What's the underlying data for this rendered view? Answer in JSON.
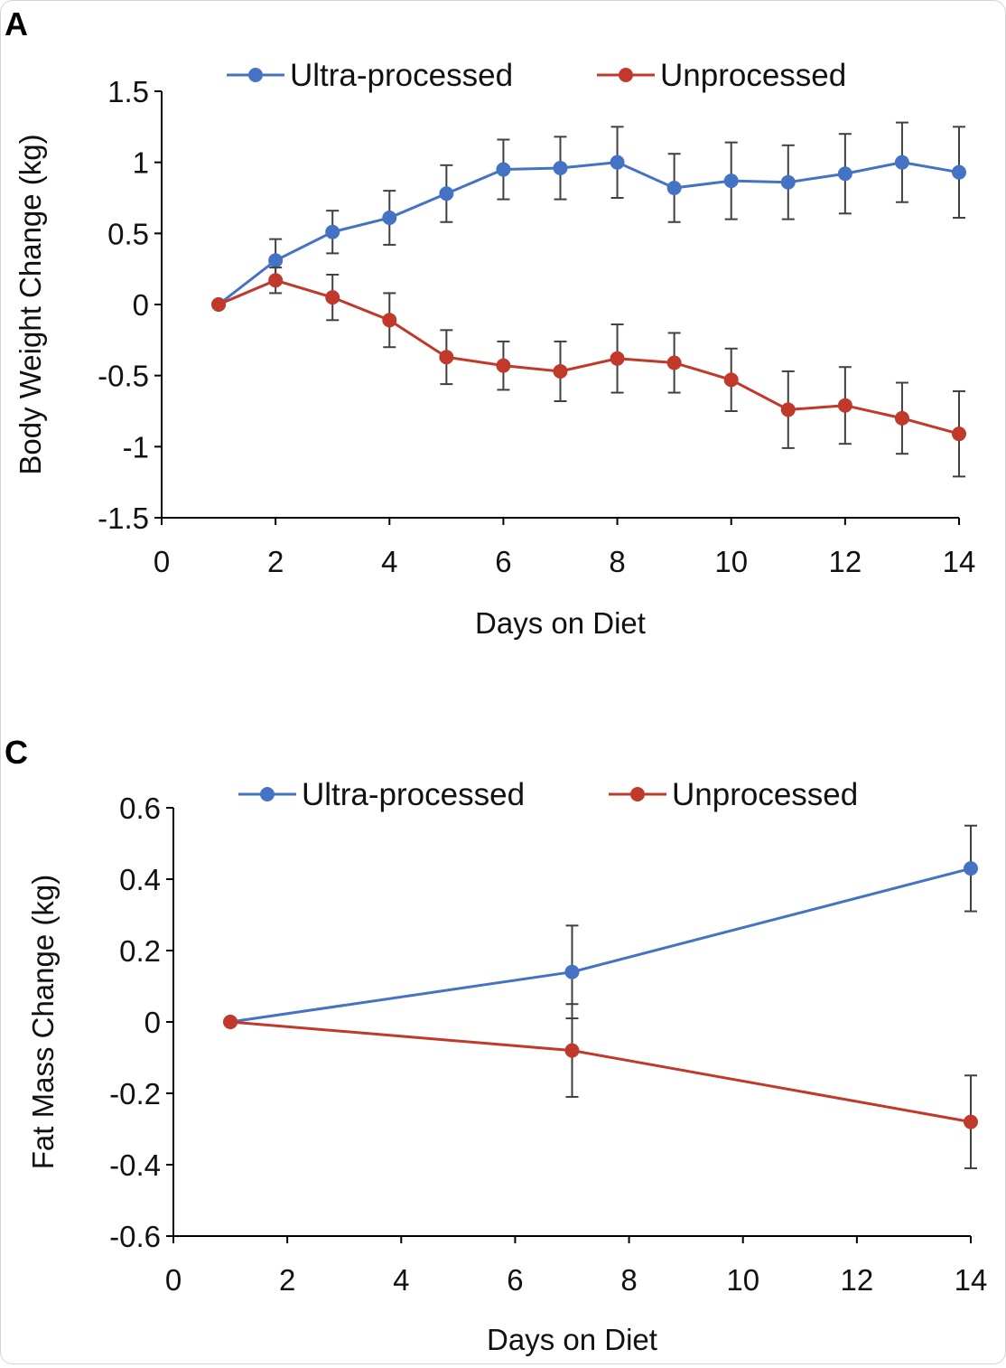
{
  "colors": {
    "ultra": "#4472C4",
    "unprocessed": "#C0392B",
    "axis": "#000000",
    "errorbar": "#404040"
  },
  "chart_data": [
    {
      "panel_label": "A",
      "type": "line",
      "xlabel": "Days on Diet",
      "ylabel": "Body Weight Change (kg)",
      "xlim": [
        0,
        14
      ],
      "ylim": [
        -1.5,
        1.5
      ],
      "xticks": [
        "0",
        "2",
        "4",
        "6",
        "8",
        "10",
        "12",
        "14"
      ],
      "yticks": [
        "1.5",
        "1",
        "0.5",
        "0",
        "-0.5",
        "-1",
        "-1.5"
      ],
      "legend_position": "top",
      "grid": false,
      "x": [
        1,
        2,
        3,
        4,
        5,
        6,
        7,
        8,
        9,
        10,
        11,
        12,
        13,
        14
      ],
      "series": [
        {
          "name": "Ultra-processed",
          "color": "#4472C4",
          "values": [
            0,
            0.31,
            0.51,
            0.61,
            0.78,
            0.95,
            0.96,
            1.0,
            0.82,
            0.87,
            0.86,
            0.92,
            1.0,
            0.93
          ],
          "error": [
            0,
            0.15,
            0.15,
            0.19,
            0.2,
            0.21,
            0.22,
            0.25,
            0.24,
            0.27,
            0.26,
            0.28,
            0.28,
            0.32
          ]
        },
        {
          "name": "Unprocessed",
          "color": "#C0392B",
          "values": [
            0,
            0.17,
            0.05,
            -0.11,
            -0.37,
            -0.43,
            -0.47,
            -0.38,
            -0.41,
            -0.53,
            -0.74,
            -0.71,
            -0.8,
            -0.91
          ],
          "error": [
            0,
            0.09,
            0.16,
            0.19,
            0.19,
            0.17,
            0.21,
            0.24,
            0.21,
            0.22,
            0.27,
            0.27,
            0.25,
            0.3
          ]
        }
      ]
    },
    {
      "panel_label": "C",
      "type": "line",
      "xlabel": "Days on Diet",
      "ylabel": "Fat Mass Change (kg)",
      "xlim": [
        0,
        14
      ],
      "ylim": [
        -0.6,
        0.6
      ],
      "xticks": [
        "0",
        "2",
        "4",
        "6",
        "8",
        "10",
        "12",
        "14"
      ],
      "yticks": [
        "0.6",
        "0.4",
        "0.2",
        "0",
        "-0.2",
        "-0.4",
        "-0.6"
      ],
      "legend_position": "top",
      "grid": false,
      "x": [
        1,
        7,
        14
      ],
      "series": [
        {
          "name": "Ultra-processed",
          "color": "#4472C4",
          "values": [
            0,
            0.14,
            0.43
          ],
          "error": [
            0,
            0.13,
            0.12
          ]
        },
        {
          "name": "Unprocessed",
          "color": "#C0392B",
          "values": [
            0,
            -0.08,
            -0.28
          ],
          "error": [
            0,
            0.13,
            0.13
          ]
        }
      ]
    }
  ]
}
